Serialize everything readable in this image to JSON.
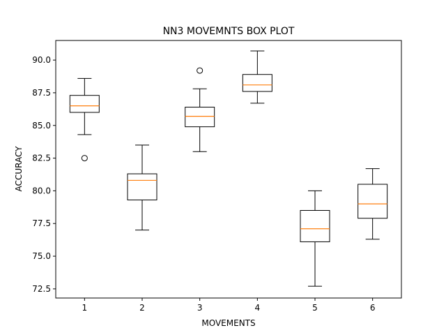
{
  "chart_data": {
    "type": "box",
    "title": "NN3 MOVEMNTS BOX PLOT",
    "xlabel": "MOVEMENTS",
    "ylabel": "ACCURACY",
    "ylim": [
      71.8,
      91.5
    ],
    "xlim": [
      0.5,
      6.5
    ],
    "y_ticks": [
      72.5,
      75.0,
      77.5,
      80.0,
      82.5,
      85.0,
      87.5,
      90.0
    ],
    "y_tick_labels": [
      "72.5",
      "75.0",
      "77.5",
      "80.0",
      "82.5",
      "85.0",
      "87.5",
      "90.0"
    ],
    "categories": [
      "1",
      "2",
      "3",
      "4",
      "5",
      "6"
    ],
    "grid": false,
    "colors": {
      "box": "#000000",
      "median": "#ff7f0e",
      "whisker": "#000000",
      "flier": "#000000"
    },
    "boxes": [
      {
        "label": "1",
        "whislo": 84.3,
        "q1": 86.0,
        "med": 86.5,
        "q3": 87.3,
        "whishi": 88.6,
        "fliers": [
          82.5
        ]
      },
      {
        "label": "2",
        "whislo": 77.0,
        "q1": 79.3,
        "med": 80.8,
        "q3": 81.3,
        "whishi": 83.5,
        "fliers": []
      },
      {
        "label": "3",
        "whislo": 83.0,
        "q1": 84.9,
        "med": 85.7,
        "q3": 86.4,
        "whishi": 87.8,
        "fliers": [
          89.2
        ]
      },
      {
        "label": "4",
        "whislo": 86.7,
        "q1": 87.6,
        "med": 88.1,
        "q3": 88.9,
        "whishi": 90.7,
        "fliers": []
      },
      {
        "label": "5",
        "whislo": 72.7,
        "q1": 76.1,
        "med": 77.1,
        "q3": 78.5,
        "whishi": 80.0,
        "fliers": []
      },
      {
        "label": "6",
        "whislo": 76.3,
        "q1": 77.9,
        "med": 79.0,
        "q3": 80.5,
        "whishi": 81.7,
        "fliers": []
      }
    ]
  }
}
